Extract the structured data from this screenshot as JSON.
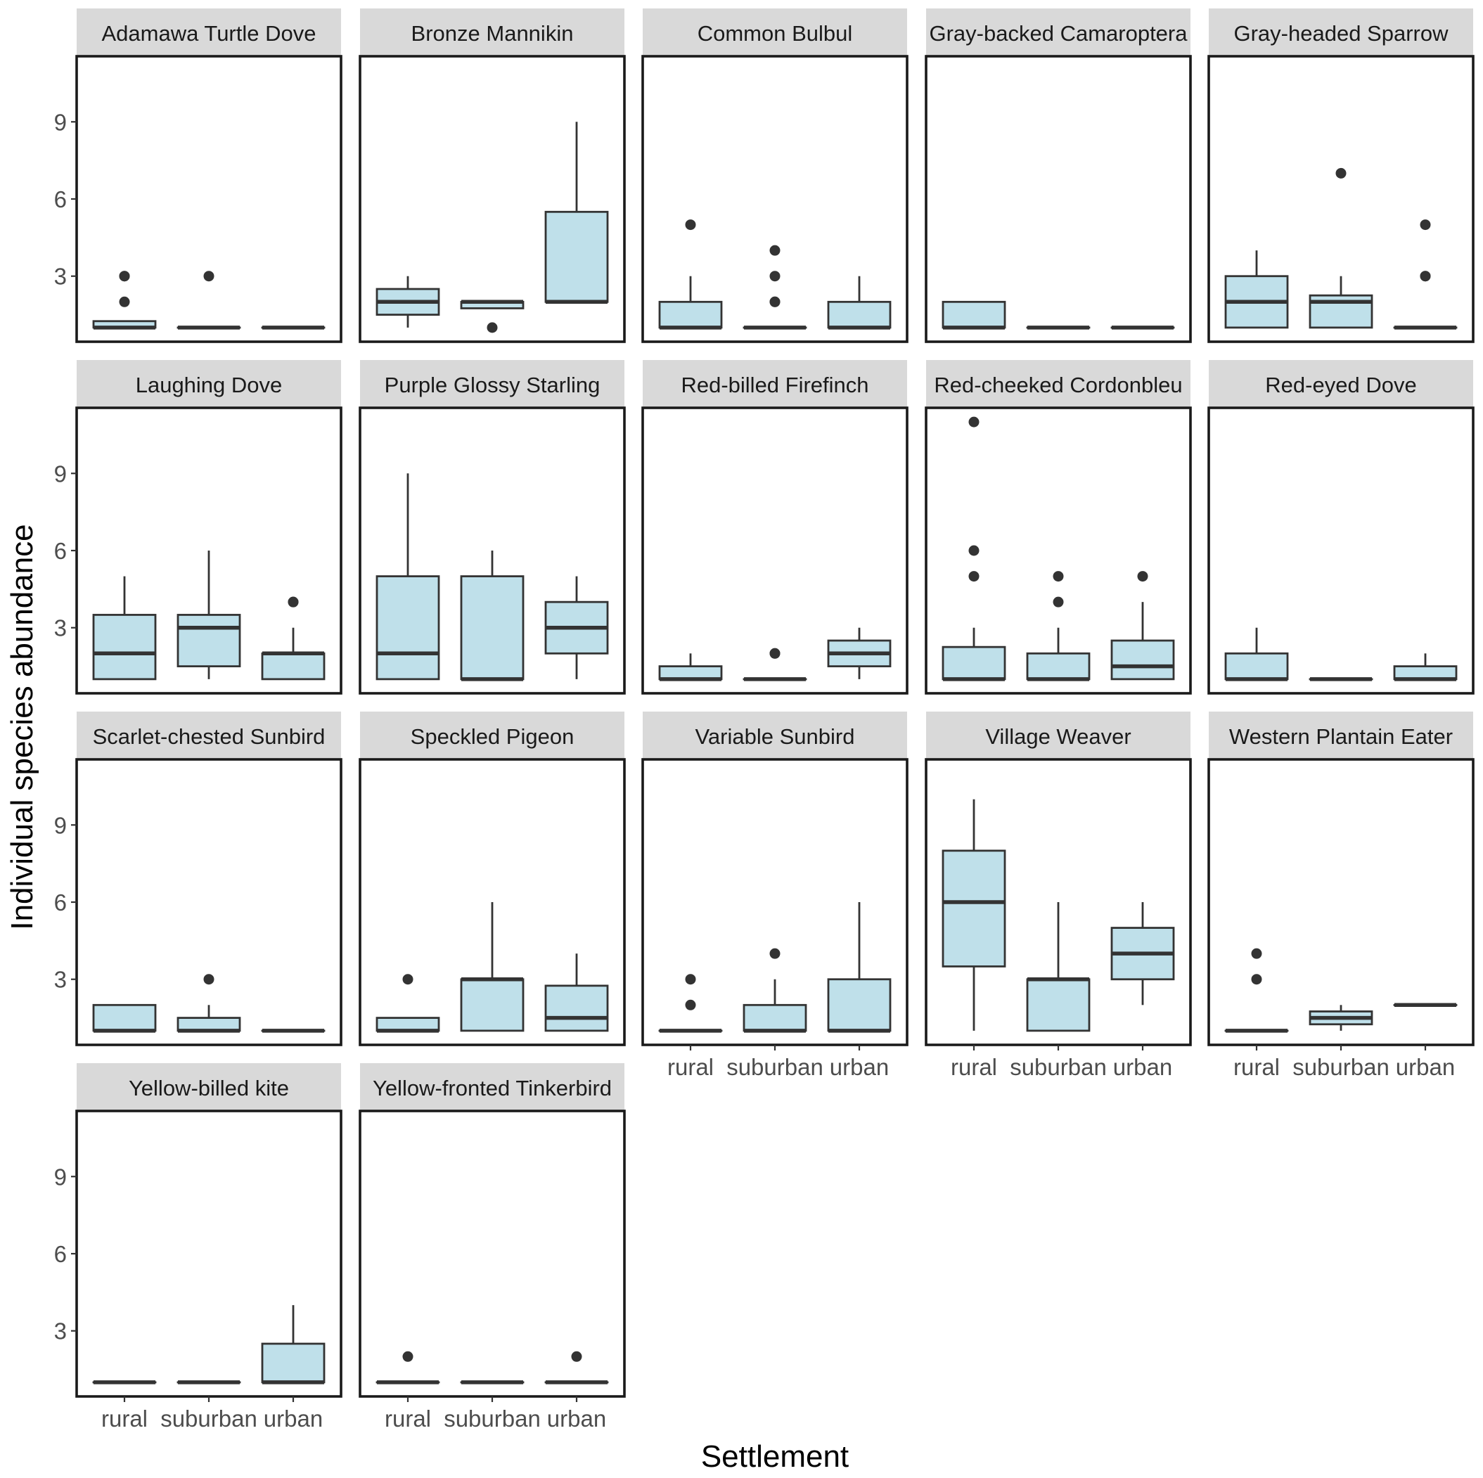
{
  "chart_data": {
    "type": "boxplot",
    "facet_layout": {
      "columns": 5,
      "rows": 4
    },
    "xlabel": "Settlement",
    "ylabel": "Individual species abundance",
    "categories": [
      "rural",
      "suburban",
      "urban"
    ],
    "y_ticks": [
      3,
      6,
      9
    ],
    "ylim": [
      0.45,
      11.55
    ],
    "colors": {
      "box_fill": "#bfe0ea",
      "line": "#333333",
      "strip": "#d9d9d9",
      "border": "#1a1a1a"
    },
    "panels": [
      {
        "title": "Adamawa Turtle Dove",
        "boxes": [
          {
            "category": "rural",
            "min": 1,
            "q1": 1,
            "median": 1,
            "q3": 1.25,
            "max": 1.25,
            "outliers": [
              3,
              3,
              2
            ]
          },
          {
            "category": "suburban",
            "min": 1,
            "q1": 1,
            "median": 1,
            "q3": 1,
            "max": 1,
            "outliers": [
              3
            ]
          },
          {
            "category": "urban",
            "min": 1,
            "q1": 1,
            "median": 1,
            "q3": 1,
            "max": 1,
            "outliers": []
          }
        ]
      },
      {
        "title": "Bronze Mannikin",
        "boxes": [
          {
            "category": "rural",
            "min": 1,
            "q1": 1.5,
            "median": 2,
            "q3": 2.5,
            "max": 3,
            "outliers": []
          },
          {
            "category": "suburban",
            "min": 1.75,
            "q1": 1.75,
            "median": 2,
            "q3": 2,
            "max": 2,
            "outliers": [
              1
            ]
          },
          {
            "category": "urban",
            "min": 2,
            "q1": 2,
            "median": 2,
            "q3": 5.5,
            "max": 9,
            "outliers": []
          }
        ]
      },
      {
        "title": "Common Bulbul",
        "boxes": [
          {
            "category": "rural",
            "min": 1,
            "q1": 1,
            "median": 1,
            "q3": 2,
            "max": 3,
            "outliers": [
              5
            ]
          },
          {
            "category": "suburban",
            "min": 1,
            "q1": 1,
            "median": 1,
            "q3": 1,
            "max": 1,
            "outliers": [
              4,
              3,
              2,
              2
            ]
          },
          {
            "category": "urban",
            "min": 1,
            "q1": 1,
            "median": 1,
            "q3": 2,
            "max": 3,
            "outliers": []
          }
        ]
      },
      {
        "title": "Gray-backed Camaroptera",
        "boxes": [
          {
            "category": "rural",
            "min": 1,
            "q1": 1,
            "median": 1,
            "q3": 2,
            "max": 2,
            "outliers": []
          },
          {
            "category": "suburban",
            "min": 1,
            "q1": 1,
            "median": 1,
            "q3": 1,
            "max": 1,
            "outliers": []
          },
          {
            "category": "urban",
            "min": 1,
            "q1": 1,
            "median": 1,
            "q3": 1,
            "max": 1,
            "outliers": []
          }
        ]
      },
      {
        "title": "Gray-headed Sparrow",
        "boxes": [
          {
            "category": "rural",
            "min": 1,
            "q1": 1,
            "median": 2,
            "q3": 3,
            "max": 4,
            "outliers": []
          },
          {
            "category": "suburban",
            "min": 1,
            "q1": 1,
            "median": 2,
            "q3": 2.25,
            "max": 3,
            "outliers": [
              7
            ]
          },
          {
            "category": "urban",
            "min": 1,
            "q1": 1,
            "median": 1,
            "q3": 1,
            "max": 1,
            "outliers": [
              5,
              3,
              3
            ]
          }
        ]
      },
      {
        "title": "Laughing Dove",
        "boxes": [
          {
            "category": "rural",
            "min": 1,
            "q1": 1,
            "median": 2,
            "q3": 3.5,
            "max": 5,
            "outliers": []
          },
          {
            "category": "suburban",
            "min": 1,
            "q1": 1.5,
            "median": 3,
            "q3": 3.5,
            "max": 6,
            "outliers": []
          },
          {
            "category": "urban",
            "min": 1,
            "q1": 1,
            "median": 2,
            "q3": 2,
            "max": 3,
            "outliers": [
              4,
              4
            ]
          }
        ]
      },
      {
        "title": "Purple Glossy Starling",
        "boxes": [
          {
            "category": "rural",
            "min": 1,
            "q1": 1,
            "median": 2,
            "q3": 5,
            "max": 9,
            "outliers": []
          },
          {
            "category": "suburban",
            "min": 1,
            "q1": 1,
            "median": 1,
            "q3": 5,
            "max": 6,
            "outliers": []
          },
          {
            "category": "urban",
            "min": 1,
            "q1": 2,
            "median": 3,
            "q3": 4,
            "max": 5,
            "outliers": []
          }
        ]
      },
      {
        "title": "Red-billed Firefinch",
        "boxes": [
          {
            "category": "rural",
            "min": 1,
            "q1": 1,
            "median": 1,
            "q3": 1.5,
            "max": 2,
            "outliers": []
          },
          {
            "category": "suburban",
            "min": 1,
            "q1": 1,
            "median": 1,
            "q3": 1,
            "max": 1,
            "outliers": [
              2,
              2
            ]
          },
          {
            "category": "urban",
            "min": 1,
            "q1": 1.5,
            "median": 2,
            "q3": 2.5,
            "max": 3,
            "outliers": []
          }
        ]
      },
      {
        "title": "Red-cheeked Cordonbleu",
        "boxes": [
          {
            "category": "rural",
            "min": 1,
            "q1": 1,
            "median": 1,
            "q3": 2.25,
            "max": 3,
            "outliers": [
              11,
              6,
              5
            ]
          },
          {
            "category": "suburban",
            "min": 1,
            "q1": 1,
            "median": 1,
            "q3": 2,
            "max": 3,
            "outliers": [
              5,
              4
            ]
          },
          {
            "category": "urban",
            "min": 1,
            "q1": 1,
            "median": 1.5,
            "q3": 2.5,
            "max": 4,
            "outliers": [
              5
            ]
          }
        ]
      },
      {
        "title": "Red-eyed Dove",
        "boxes": [
          {
            "category": "rural",
            "min": 1,
            "q1": 1,
            "median": 1,
            "q3": 2,
            "max": 3,
            "outliers": []
          },
          {
            "category": "suburban",
            "min": 1,
            "q1": 1,
            "median": 1,
            "q3": 1,
            "max": 1,
            "outliers": []
          },
          {
            "category": "urban",
            "min": 1,
            "q1": 1,
            "median": 1,
            "q3": 1.5,
            "max": 2,
            "outliers": []
          }
        ]
      },
      {
        "title": "Scarlet-chested Sunbird",
        "boxes": [
          {
            "category": "rural",
            "min": 1,
            "q1": 1,
            "median": 1,
            "q3": 2,
            "max": 2,
            "outliers": []
          },
          {
            "category": "suburban",
            "min": 1,
            "q1": 1,
            "median": 1,
            "q3": 1.5,
            "max": 2,
            "outliers": [
              3
            ]
          },
          {
            "category": "urban",
            "min": 1,
            "q1": 1,
            "median": 1,
            "q3": 1,
            "max": 1,
            "outliers": []
          }
        ]
      },
      {
        "title": "Speckled Pigeon",
        "boxes": [
          {
            "category": "rural",
            "min": 1,
            "q1": 1,
            "median": 1,
            "q3": 1.5,
            "max": 1.5,
            "outliers": [
              3
            ]
          },
          {
            "category": "suburban",
            "min": 1,
            "q1": 1,
            "median": 3,
            "q3": 3,
            "max": 6,
            "outliers": []
          },
          {
            "category": "urban",
            "min": 1,
            "q1": 1,
            "median": 1.5,
            "q3": 2.75,
            "max": 4,
            "outliers": []
          }
        ]
      },
      {
        "title": "Variable Sunbird",
        "boxes": [
          {
            "category": "rural",
            "min": 1,
            "q1": 1,
            "median": 1,
            "q3": 1,
            "max": 1,
            "outliers": [
              3,
              2
            ]
          },
          {
            "category": "suburban",
            "min": 1,
            "q1": 1,
            "median": 1,
            "q3": 2,
            "max": 3,
            "outliers": [
              4
            ]
          },
          {
            "category": "urban",
            "min": 1,
            "q1": 1,
            "median": 1,
            "q3": 3,
            "max": 6,
            "outliers": []
          }
        ]
      },
      {
        "title": "Village Weaver",
        "boxes": [
          {
            "category": "rural",
            "min": 1,
            "q1": 3.5,
            "median": 6,
            "q3": 8,
            "max": 10,
            "outliers": []
          },
          {
            "category": "suburban",
            "min": 1,
            "q1": 1,
            "median": 3,
            "q3": 3,
            "max": 6,
            "outliers": []
          },
          {
            "category": "urban",
            "min": 2,
            "q1": 3,
            "median": 4,
            "q3": 5,
            "max": 6,
            "outliers": []
          }
        ]
      },
      {
        "title": "Western Plantain Eater",
        "boxes": [
          {
            "category": "rural",
            "min": 1,
            "q1": 1,
            "median": 1,
            "q3": 1,
            "max": 1,
            "outliers": [
              4,
              3
            ]
          },
          {
            "category": "suburban",
            "min": 1,
            "q1": 1.25,
            "median": 1.5,
            "q3": 1.75,
            "max": 2,
            "outliers": []
          },
          {
            "category": "urban",
            "min": 2,
            "q1": 2,
            "median": 2,
            "q3": 2,
            "max": 2,
            "outliers": []
          }
        ]
      },
      {
        "title": "Yellow-billed kite",
        "boxes": [
          {
            "category": "rural",
            "min": 1,
            "q1": 1,
            "median": 1,
            "q3": 1,
            "max": 1,
            "outliers": []
          },
          {
            "category": "suburban",
            "min": 1,
            "q1": 1,
            "median": 1,
            "q3": 1,
            "max": 1,
            "outliers": []
          },
          {
            "category": "urban",
            "min": 1,
            "q1": 1,
            "median": 1,
            "q3": 2.5,
            "max": 4,
            "outliers": []
          }
        ]
      },
      {
        "title": "Yellow-fronted Tinkerbird",
        "boxes": [
          {
            "category": "rural",
            "min": 1,
            "q1": 1,
            "median": 1,
            "q3": 1,
            "max": 1,
            "outliers": [
              2
            ]
          },
          {
            "category": "suburban",
            "min": 1,
            "q1": 1,
            "median": 1,
            "q3": 1,
            "max": 1,
            "outliers": []
          },
          {
            "category": "urban",
            "min": 1,
            "q1": 1,
            "median": 1,
            "q3": 1,
            "max": 1,
            "outliers": [
              2
            ]
          }
        ]
      }
    ]
  }
}
